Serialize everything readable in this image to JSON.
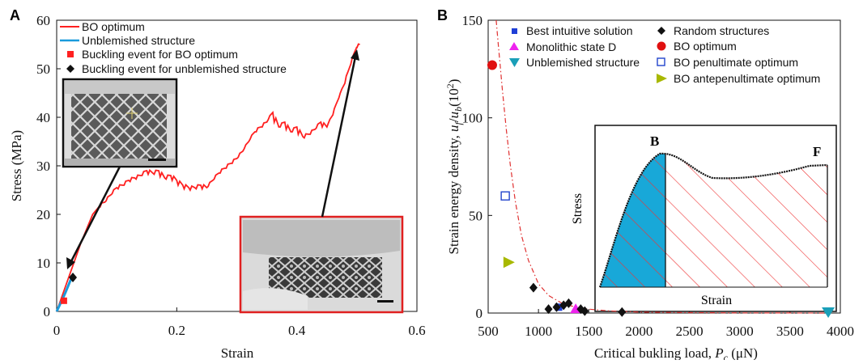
{
  "chart_data": [
    {
      "type": "line",
      "panel_label": "A",
      "xlabel": "Strain",
      "ylabel": "Stress (MPa)",
      "xlim": [
        0,
        0.6
      ],
      "ylim": [
        0,
        60
      ],
      "xticks": [
        0,
        0.2,
        0.4,
        0.6
      ],
      "yticks": [
        0,
        10,
        20,
        30,
        40,
        50,
        60
      ],
      "xtick_labels": [
        "0",
        "0.2",
        "0.4",
        "0.6"
      ],
      "ytick_labels": [
        "0",
        "10",
        "20",
        "30",
        "40",
        "50",
        "60"
      ],
      "legend_position": "top-left",
      "series": [
        {
          "name": "BO optimum",
          "color": "#ff2020",
          "x": [
            0,
            0.01,
            0.02,
            0.03,
            0.04,
            0.05,
            0.06,
            0.07,
            0.08,
            0.09,
            0.1,
            0.11,
            0.12,
            0.13,
            0.14,
            0.15,
            0.16,
            0.17,
            0.18,
            0.19,
            0.2,
            0.21,
            0.22,
            0.23,
            0.24,
            0.25,
            0.26,
            0.27,
            0.28,
            0.29,
            0.3,
            0.31,
            0.32,
            0.33,
            0.34,
            0.35,
            0.36,
            0.37,
            0.38,
            0.39,
            0.4,
            0.41,
            0.42,
            0.43,
            0.44,
            0.45,
            0.46,
            0.47,
            0.48,
            0.49,
            0.5,
            0.505
          ],
          "y": [
            0,
            3.5,
            7,
            10.5,
            14,
            17,
            20,
            21.5,
            22.5,
            24,
            25.5,
            26,
            27,
            27.5,
            28,
            29,
            28.5,
            29,
            27.5,
            28,
            27,
            26,
            25.5,
            25.5,
            26,
            25.5,
            27,
            28.5,
            29.5,
            30.5,
            31.5,
            33,
            35,
            37,
            38,
            39,
            41,
            38,
            39,
            37,
            38,
            36,
            36.5,
            37.5,
            39,
            38,
            40.5,
            44,
            47,
            51,
            54.5,
            55
          ]
        },
        {
          "name": "Unblemished structure",
          "color": "#1a9bdc",
          "x": [
            0,
            0.005,
            0.01,
            0.015,
            0.02,
            0.025
          ],
          "y": [
            0,
            1.3,
            2.6,
            4,
            5.5,
            7
          ]
        }
      ],
      "markers": [
        {
          "name": "Buckling event for BO optimum",
          "shape": "square",
          "color": "#ff2020",
          "x": 0.012,
          "y": 2.2
        },
        {
          "name": "Buckling event for unblemished structure",
          "shape": "diamond",
          "color": "#111111",
          "x": 0.027,
          "y": 7
        }
      ]
    },
    {
      "type": "scatter",
      "panel_label": "B",
      "xlabel": "Critical bukling load, P_c (μN)",
      "ylabel": "Strain energy density, u_f/u_b (10^2)",
      "xlim": [
        500,
        4000
      ],
      "ylim": [
        0,
        150
      ],
      "xticks": [
        500,
        1000,
        1500,
        2000,
        2500,
        3000,
        3500,
        4000
      ],
      "yticks": [
        0,
        50,
        100,
        150
      ],
      "xtick_labels": [
        "500",
        "1000",
        "1500",
        "2000",
        "2500",
        "3000",
        "3500",
        "4000"
      ],
      "ytick_labels": [
        "0",
        "50",
        "100",
        "150"
      ],
      "legend_position": "top",
      "series": [
        {
          "name": "Best intuitive solution",
          "shape": "square",
          "color": "#1f3fd6",
          "points": [
            [
              1200,
              3
            ]
          ]
        },
        {
          "name": "Monolithic state D",
          "shape": "triangle-up",
          "color": "#ee22ee",
          "points": [
            [
              1370,
              2
            ]
          ]
        },
        {
          "name": "Unblemished structure",
          "shape": "triangle-down",
          "color": "#1a9fb8",
          "points": [
            [
              3880,
              0
            ]
          ]
        },
        {
          "name": "Random structures",
          "shape": "diamond",
          "color": "#111111",
          "points": [
            [
              950,
              13
            ],
            [
              1100,
              2
            ],
            [
              1180,
              3
            ],
            [
              1250,
              4
            ],
            [
              1300,
              5
            ],
            [
              1420,
              2
            ],
            [
              1460,
              1
            ],
            [
              1830,
              0.5
            ]
          ]
        },
        {
          "name": "BO optimum",
          "shape": "circle",
          "color": "#e01010",
          "points": [
            [
              540,
              127
            ]
          ]
        },
        {
          "name": "BO penultimate optimum",
          "shape": "square-open",
          "color": "#2244cc",
          "points": [
            [
              670,
              60
            ]
          ]
        },
        {
          "name": "BO antepenultimate optimum",
          "shape": "triangle-right",
          "color": "#a8b800",
          "points": [
            [
              700,
              26
            ]
          ]
        }
      ],
      "fit_curve": {
        "color": "#e03030",
        "style": "dash-dot",
        "x": [
          580,
          600,
          640,
          680,
          720,
          770,
          830,
          900,
          1000,
          1100,
          1250,
          1450,
          1700,
          2000,
          2500,
          3000,
          3500,
          3900
        ],
        "y": [
          150,
          138,
          115,
          94,
          76,
          57,
          40,
          27,
          15,
          9,
          4.5,
          2.2,
          1.1,
          0.5,
          0.2,
          0.1,
          0.05,
          0.02
        ]
      },
      "inset": {
        "xlabel": "Strain",
        "ylabel": "Stress",
        "labels": [
          "B",
          "F"
        ]
      }
    }
  ]
}
